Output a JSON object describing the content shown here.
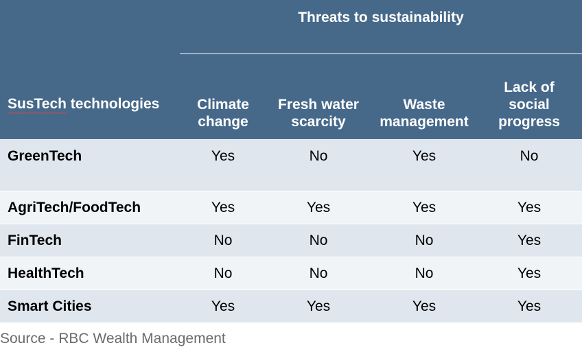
{
  "header": {
    "group_title": "Threats to sustainability",
    "row_header_part1": "SusTech",
    "row_header_part2": " technologies",
    "columns": [
      "Climate\nchange",
      "Fresh water\nscarcity",
      "Waste\nmanagement",
      "Lack of\nsocial\nprogress"
    ]
  },
  "rows": [
    {
      "label": "GreenTech",
      "values": [
        "Yes",
        "No",
        "Yes",
        "No"
      ]
    },
    {
      "label": "AgriTech/FoodTech",
      "values": [
        "Yes",
        "Yes",
        "Yes",
        "Yes"
      ]
    },
    {
      "label": "FinTech",
      "values": [
        "No",
        "No",
        "No",
        "Yes"
      ]
    },
    {
      "label": "HealthTech",
      "values": [
        "No",
        "No",
        "No",
        "Yes"
      ]
    },
    {
      "label": "Smart Cities",
      "values": [
        "Yes",
        "Yes",
        "Yes",
        "Yes"
      ]
    }
  ],
  "source": "Source - RBC Wealth Management",
  "colors": {
    "header_bg": "#46698a",
    "row_shade_dark": "#dfe6ee",
    "row_shade_light": "#f1f4f7"
  }
}
